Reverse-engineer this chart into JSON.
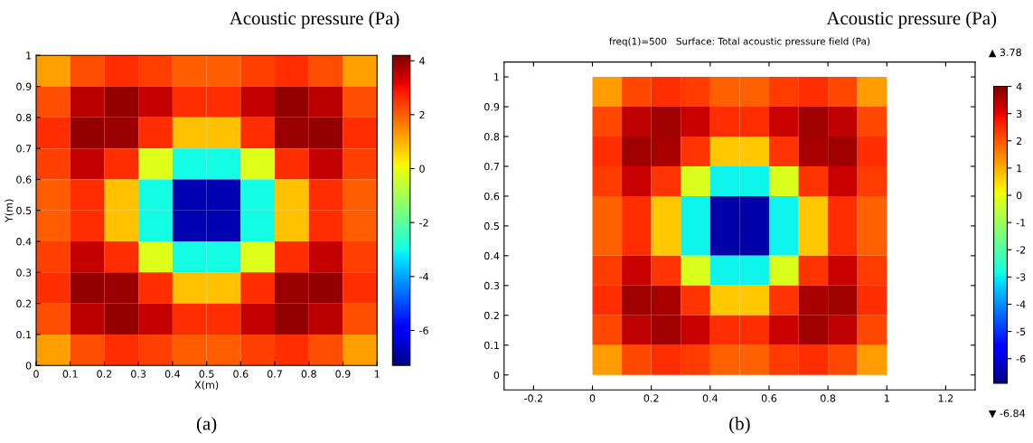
{
  "chart_data": [
    {
      "type": "heatmap",
      "title": "Acoustic pressure (Pa)",
      "xlabel": "X(m)",
      "ylabel": "Y(m)",
      "x": [
        0.05,
        0.15,
        0.25,
        0.35,
        0.45,
        0.55,
        0.65,
        0.75,
        0.85,
        0.95
      ],
      "y": [
        0.95,
        0.85,
        0.75,
        0.65,
        0.55,
        0.45,
        0.35,
        0.25,
        0.15,
        0.05
      ],
      "cells": [
        [
          1.2,
          2.2,
          2.6,
          2.4,
          2.0,
          2.0,
          2.4,
          2.6,
          2.2,
          1.2
        ],
        [
          2.2,
          3.6,
          4.0,
          3.5,
          2.6,
          2.6,
          3.5,
          4.0,
          3.6,
          2.2
        ],
        [
          2.6,
          4.0,
          3.9,
          2.6,
          0.8,
          0.8,
          2.6,
          3.9,
          4.0,
          2.6
        ],
        [
          2.4,
          3.5,
          2.6,
          -0.2,
          -3.0,
          -3.0,
          -0.2,
          2.6,
          3.5,
          2.4
        ],
        [
          2.0,
          2.6,
          0.8,
          -3.0,
          -6.8,
          -6.8,
          -3.0,
          0.8,
          2.6,
          2.0
        ],
        [
          2.0,
          2.6,
          0.8,
          -3.0,
          -6.8,
          -6.8,
          -3.0,
          0.8,
          2.6,
          2.0
        ],
        [
          2.4,
          3.5,
          2.6,
          -0.2,
          -3.0,
          -3.0,
          -0.2,
          2.6,
          3.5,
          2.4
        ],
        [
          2.6,
          4.0,
          3.9,
          2.6,
          0.8,
          0.8,
          2.6,
          3.9,
          4.0,
          2.6
        ],
        [
          2.2,
          3.6,
          4.0,
          3.5,
          2.6,
          2.6,
          3.5,
          4.0,
          3.6,
          2.2
        ],
        [
          1.2,
          2.2,
          2.6,
          2.4,
          2.0,
          2.0,
          2.4,
          2.6,
          2.2,
          1.2
        ]
      ],
      "xlim": [
        0,
        1
      ],
      "ylim": [
        0,
        1
      ],
      "xticks": [
        0,
        0.1,
        0.2,
        0.3,
        0.4,
        0.5,
        0.6,
        0.7,
        0.8,
        0.9,
        1
      ],
      "yticks": [
        0,
        0.1,
        0.2,
        0.3,
        0.4,
        0.5,
        0.6,
        0.7,
        0.8,
        0.9,
        1
      ],
      "clim": [
        -7.3,
        4.2
      ],
      "cticks": [
        -6,
        -4,
        -2,
        0,
        2,
        4
      ],
      "annotations": [
        "(a)"
      ]
    },
    {
      "type": "heatmap",
      "title": "Acoustic pressure (Pa)",
      "subtitle": "freq(1)=500   Surface: Total acoustic pressure field (Pa)",
      "x": [
        0.05,
        0.15,
        0.25,
        0.35,
        0.45,
        0.55,
        0.65,
        0.75,
        0.85,
        0.95
      ],
      "y": [
        0.95,
        0.85,
        0.75,
        0.65,
        0.55,
        0.45,
        0.35,
        0.25,
        0.15,
        0.05
      ],
      "cells": [
        [
          1.2,
          2.2,
          2.5,
          2.3,
          1.9,
          1.9,
          2.3,
          2.5,
          2.2,
          1.2
        ],
        [
          2.2,
          3.4,
          3.7,
          3.3,
          2.5,
          2.5,
          3.3,
          3.7,
          3.4,
          2.2
        ],
        [
          2.5,
          3.7,
          3.6,
          2.4,
          0.7,
          0.7,
          2.4,
          3.6,
          3.7,
          2.5
        ],
        [
          2.3,
          3.3,
          2.4,
          -0.2,
          -2.9,
          -2.9,
          -0.2,
          2.4,
          3.3,
          2.3
        ],
        [
          1.9,
          2.5,
          0.7,
          -2.9,
          -6.5,
          -6.5,
          -2.9,
          0.7,
          2.5,
          1.9
        ],
        [
          1.9,
          2.5,
          0.7,
          -2.9,
          -6.5,
          -6.5,
          -2.9,
          0.7,
          2.5,
          1.9
        ],
        [
          2.3,
          3.3,
          2.4,
          -0.2,
          -2.9,
          -2.9,
          -0.2,
          2.4,
          3.3,
          2.3
        ],
        [
          2.5,
          3.7,
          3.6,
          2.4,
          0.7,
          0.7,
          2.4,
          3.6,
          3.7,
          2.5
        ],
        [
          2.2,
          3.4,
          3.7,
          3.3,
          2.5,
          2.5,
          3.3,
          3.7,
          3.4,
          2.2
        ],
        [
          1.2,
          2.2,
          2.5,
          2.3,
          1.9,
          1.9,
          2.3,
          2.5,
          2.2,
          1.2
        ]
      ],
      "xlim": [
        -0.3,
        1.3
      ],
      "ylim": [
        -0.05,
        1.05
      ],
      "xticks": [
        -0.2,
        0,
        0.2,
        0.4,
        0.6,
        0.8,
        1,
        1.2
      ],
      "yticks": [
        0,
        0.1,
        0.2,
        0.3,
        0.4,
        0.5,
        0.6,
        0.7,
        0.8,
        0.9,
        1
      ],
      "clim": [
        -6.9,
        4
      ],
      "cticks": [
        -6,
        -5,
        -4,
        -3,
        -2,
        -1,
        0,
        1,
        2,
        3,
        4
      ],
      "annotations": [
        "▲ 3.78",
        "▼ -6.84",
        "(b)"
      ]
    }
  ]
}
